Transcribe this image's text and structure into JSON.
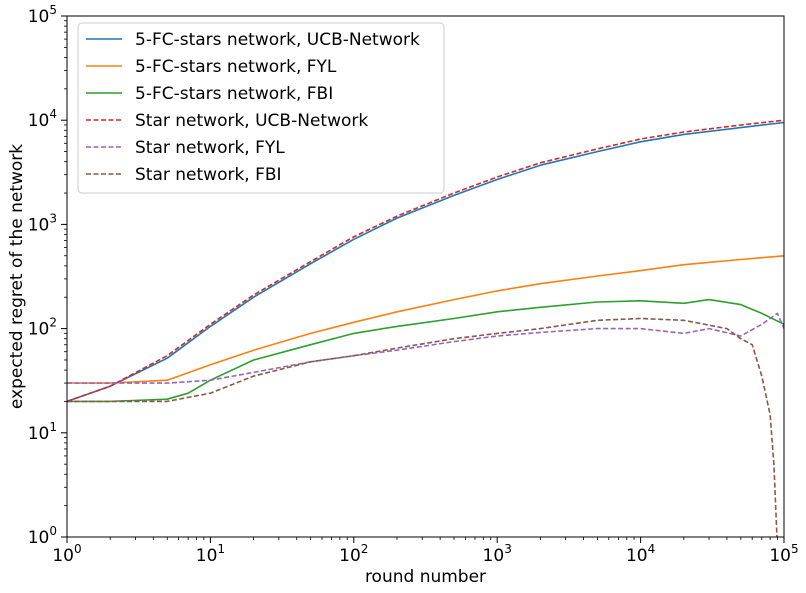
{
  "chart_data": {
    "type": "line",
    "title": "",
    "xlabel": "round number",
    "ylabel": "expected regret of the network",
    "xscale": "log",
    "yscale": "log",
    "xlim": [
      1,
      100000
    ],
    "ylim": [
      1,
      100000
    ],
    "x_ticks": [
      {
        "base": "10",
        "exp": "0",
        "value": 1
      },
      {
        "base": "10",
        "exp": "1",
        "value": 10
      },
      {
        "base": "10",
        "exp": "2",
        "value": 100
      },
      {
        "base": "10",
        "exp": "3",
        "value": 1000
      },
      {
        "base": "10",
        "exp": "4",
        "value": 10000
      },
      {
        "base": "10",
        "exp": "5",
        "value": 100000
      }
    ],
    "y_ticks": [
      {
        "base": "10",
        "exp": "0",
        "value": 1
      },
      {
        "base": "10",
        "exp": "1",
        "value": 10
      },
      {
        "base": "10",
        "exp": "2",
        "value": 100
      },
      {
        "base": "10",
        "exp": "3",
        "value": 1000
      },
      {
        "base": "10",
        "exp": "4",
        "value": 10000
      },
      {
        "base": "10",
        "exp": "5",
        "value": 100000
      }
    ],
    "grid": false,
    "legend_position": "top-left",
    "series": [
      {
        "name": "5-FC-stars network, UCB-Network",
        "color": "#1f77b4",
        "dash": "solid",
        "x": [
          1,
          2,
          5,
          10,
          20,
          50,
          100,
          200,
          500,
          1000,
          2000,
          5000,
          10000,
          20000,
          50000,
          100000
        ],
        "y": [
          20,
          28,
          52,
          105,
          200,
          420,
          720,
          1150,
          1900,
          2700,
          3700,
          5000,
          6200,
          7300,
          8500,
          9500
        ]
      },
      {
        "name": "5-FC-stars network, FYL",
        "color": "#ff7f0e",
        "dash": "solid",
        "x": [
          1,
          2,
          5,
          10,
          20,
          50,
          100,
          200,
          500,
          1000,
          2000,
          5000,
          10000,
          20000,
          50000,
          100000
        ],
        "y": [
          30,
          30,
          32,
          45,
          62,
          90,
          115,
          145,
          190,
          230,
          270,
          320,
          360,
          410,
          460,
          500
        ]
      },
      {
        "name": "5-FC-stars network, FBI",
        "color": "#2ca02c",
        "dash": "solid",
        "x": [
          1,
          2,
          5,
          7,
          10,
          20,
          50,
          100,
          200,
          500,
          1000,
          2000,
          5000,
          10000,
          20000,
          30000,
          50000,
          70000,
          100000
        ],
        "y": [
          20,
          20,
          21,
          24,
          32,
          50,
          70,
          90,
          105,
          125,
          145,
          160,
          180,
          185,
          175,
          190,
          170,
          140,
          110
        ]
      },
      {
        "name": "Star network, UCB-Network",
        "color": "#d62728",
        "dash": "dashed",
        "x": [
          1,
          2,
          5,
          10,
          20,
          50,
          100,
          200,
          500,
          1000,
          2000,
          5000,
          10000,
          20000,
          50000,
          100000
        ],
        "y": [
          20,
          28,
          55,
          110,
          210,
          440,
          760,
          1200,
          2000,
          2850,
          3900,
          5300,
          6600,
          7700,
          9000,
          10000
        ]
      },
      {
        "name": "Star network, FYL",
        "color": "#9467bd",
        "dash": "dashed",
        "x": [
          1,
          2,
          5,
          10,
          20,
          50,
          100,
          200,
          500,
          1000,
          2000,
          5000,
          10000,
          20000,
          30000,
          50000,
          70000,
          90000,
          100000
        ],
        "y": [
          30,
          30,
          30,
          32,
          38,
          48,
          55,
          62,
          75,
          85,
          92,
          100,
          100,
          90,
          100,
          85,
          110,
          140,
          100
        ]
      },
      {
        "name": "Star network, FBI",
        "color": "#8c564b",
        "dash": "dashed",
        "x": [
          1,
          2,
          5,
          10,
          20,
          50,
          100,
          200,
          500,
          1000,
          2000,
          5000,
          10000,
          20000,
          40000,
          50000,
          60000,
          70000,
          80000,
          85000,
          90000
        ],
        "y": [
          20,
          20,
          20,
          24,
          35,
          48,
          55,
          65,
          80,
          90,
          100,
          120,
          125,
          120,
          100,
          80,
          70,
          35,
          15,
          5,
          0.8
        ]
      }
    ]
  }
}
